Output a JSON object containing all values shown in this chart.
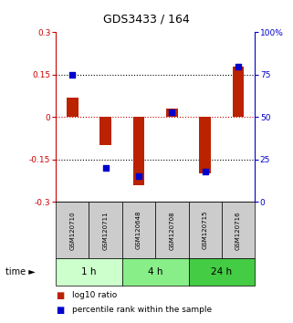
{
  "title": "GDS3433 / 164",
  "samples": [
    "GSM120710",
    "GSM120711",
    "GSM120648",
    "GSM120708",
    "GSM120715",
    "GSM120716"
  ],
  "log10_ratio": [
    0.07,
    -0.1,
    -0.24,
    0.03,
    -0.2,
    0.18
  ],
  "percentile_rank": [
    75,
    20,
    15,
    53,
    18,
    80
  ],
  "ylim_left": [
    -0.3,
    0.3
  ],
  "ylim_right": [
    0,
    100
  ],
  "yticks_left": [
    -0.3,
    -0.15,
    0,
    0.15,
    0.3
  ],
  "yticks_right": [
    0,
    25,
    50,
    75,
    100
  ],
  "ytick_labels_left": [
    "-0.3",
    "-0.15",
    "0",
    "0.15",
    "0.3"
  ],
  "ytick_labels_right": [
    "0",
    "25",
    "50",
    "75",
    "100%"
  ],
  "hlines_black": [
    0.15,
    -0.15
  ],
  "hline_red": 0,
  "bar_color": "#bb2200",
  "dot_color": "#0000cc",
  "time_groups": [
    {
      "label": "1 h",
      "start": 0,
      "end": 2,
      "color": "#ccffcc"
    },
    {
      "label": "4 h",
      "start": 2,
      "end": 4,
      "color": "#88ee88"
    },
    {
      "label": "24 h",
      "start": 4,
      "end": 6,
      "color": "#44cc44"
    }
  ],
  "sample_box_color": "#cccccc",
  "legend_red_label": "log10 ratio",
  "legend_blue_label": "percentile rank within the sample",
  "time_label": "time ►",
  "bar_width": 0.35,
  "dot_size": 25
}
